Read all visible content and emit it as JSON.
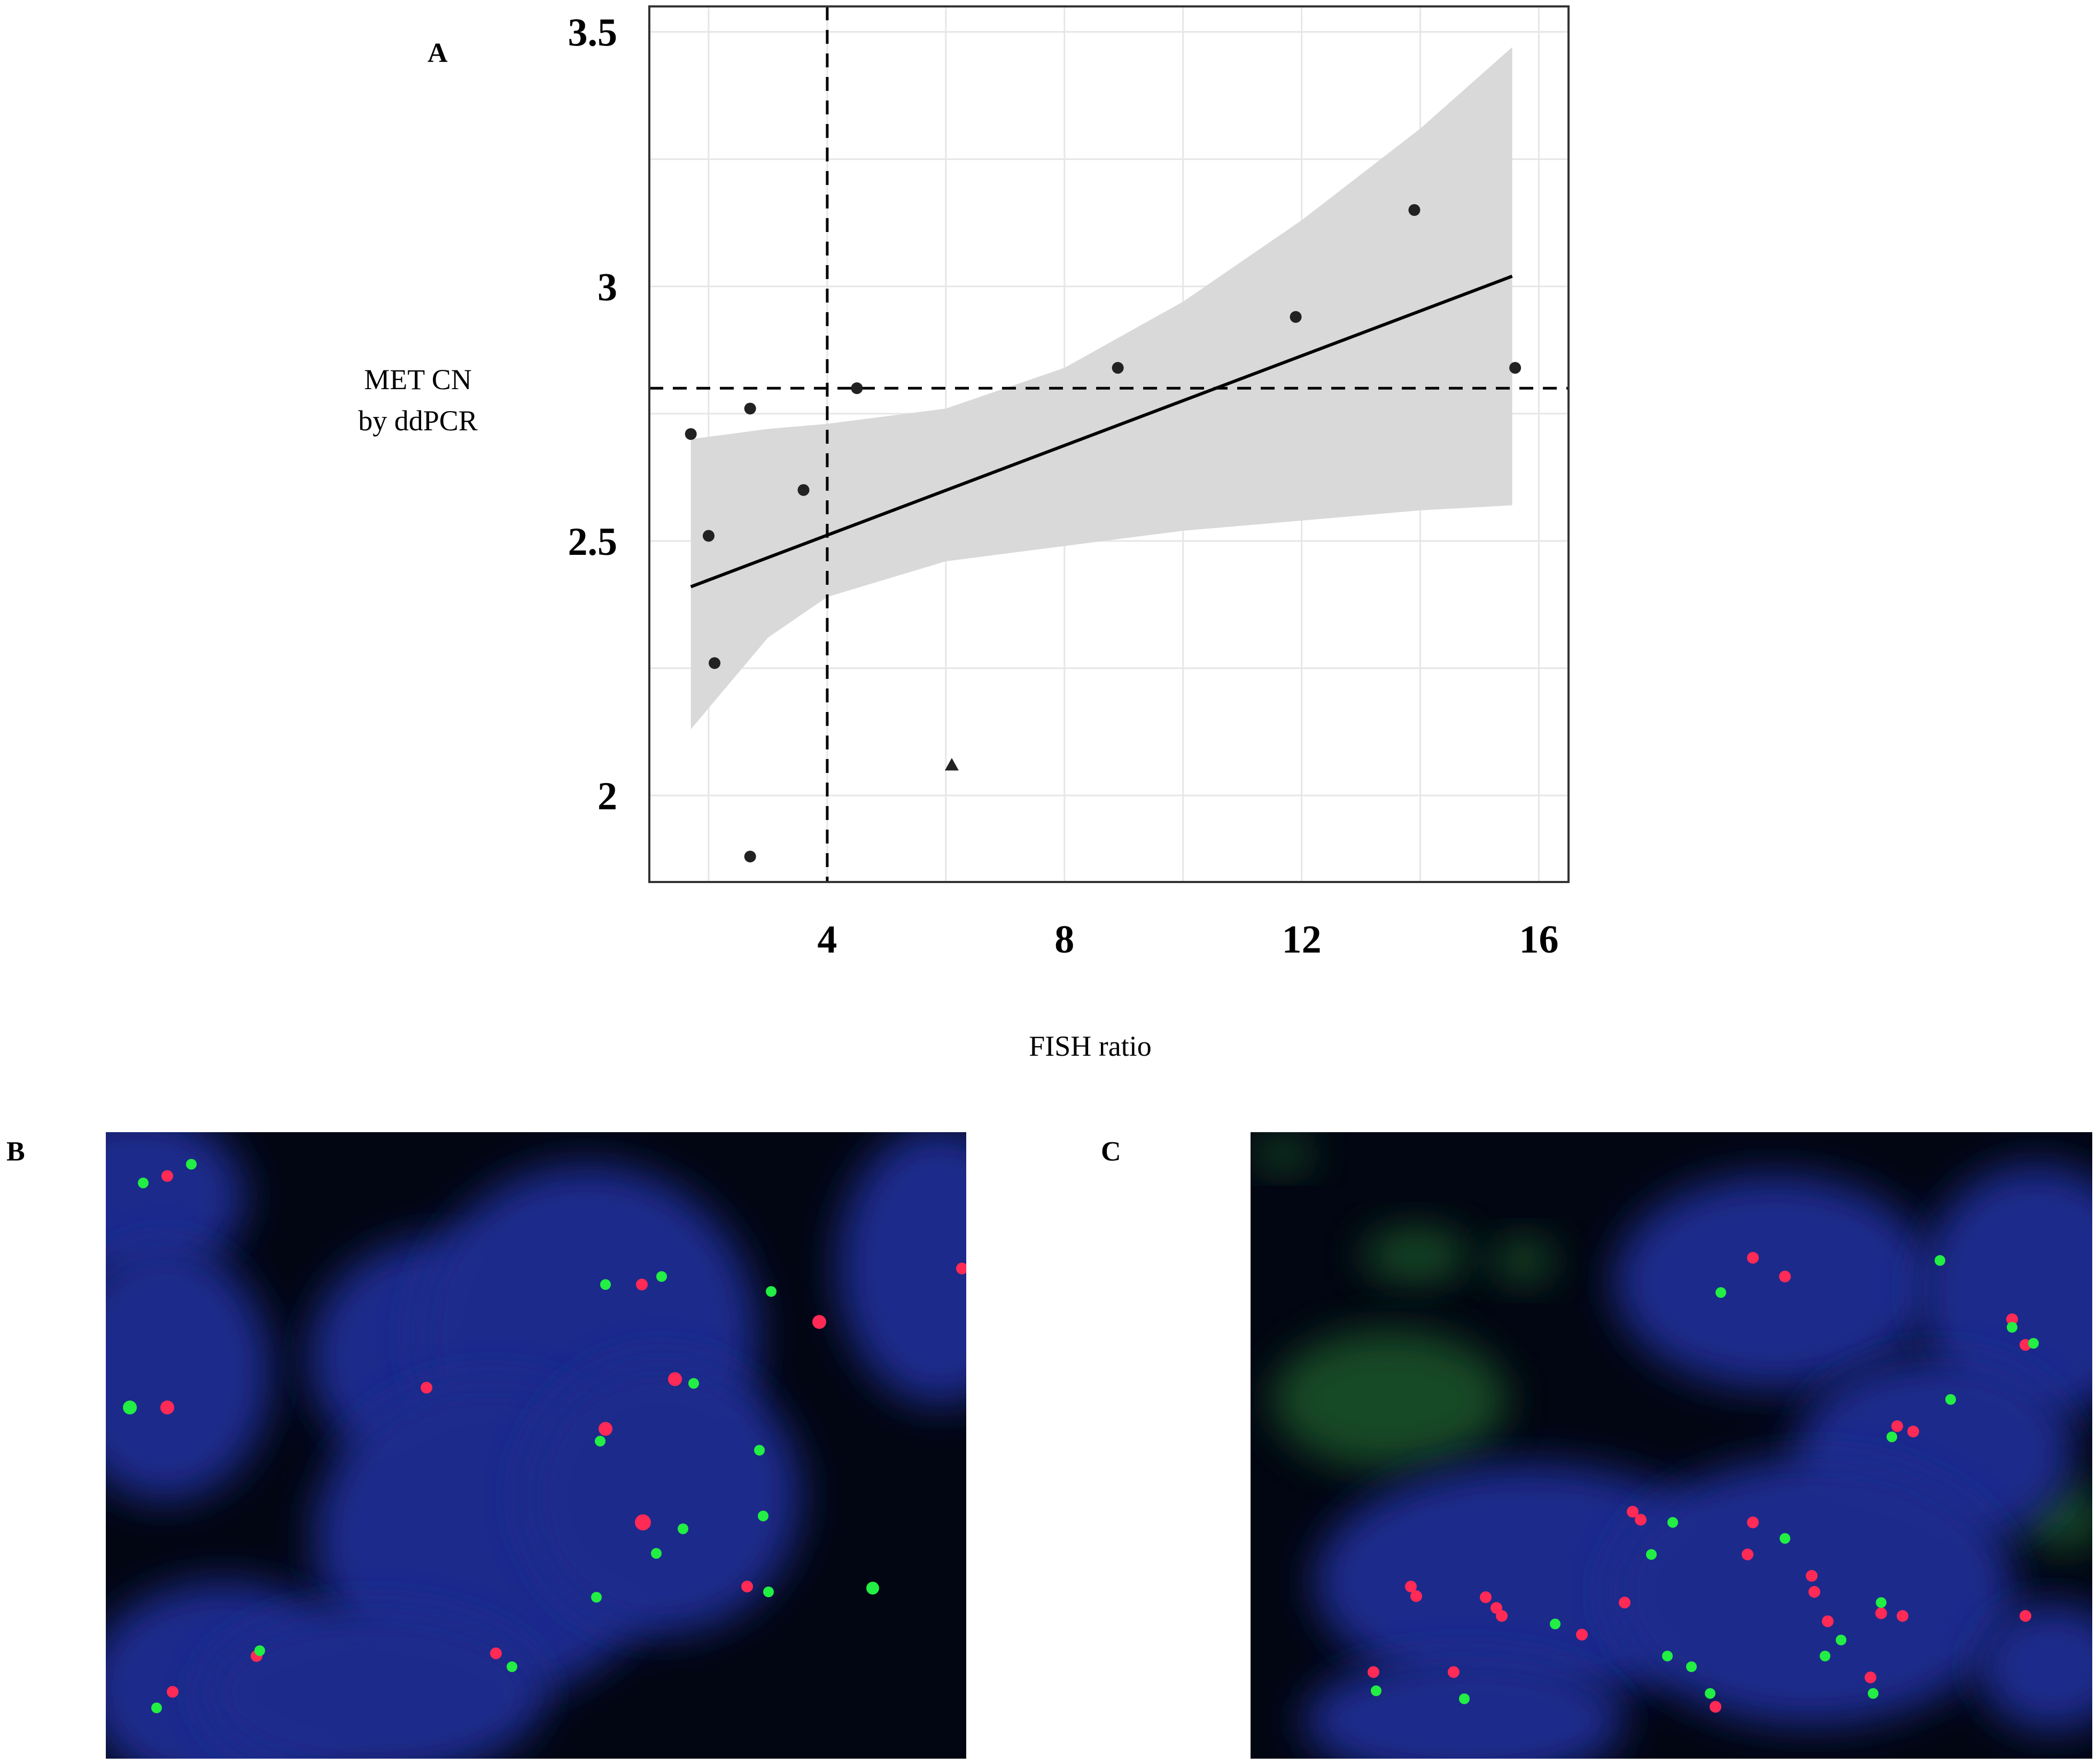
{
  "panels": {
    "a_label": "A",
    "b_label": "B",
    "c_label": "C"
  },
  "chart_data": {
    "type": "scatter",
    "title": "",
    "xlabel": "FISH ratio",
    "ylabel_lines": [
      "MET CN",
      "by ddPCR"
    ],
    "xlim": [
      1,
      16.5
    ],
    "ylim": [
      1.83,
      3.55
    ],
    "x_ticks": [
      4,
      8,
      12,
      16
    ],
    "x_tick_labels": [
      "4",
      "8",
      "12",
      "16"
    ],
    "y_ticks": [
      2,
      2.5,
      3,
      3.5
    ],
    "y_tick_labels": [
      "2",
      "2.5",
      "3",
      "3.5"
    ],
    "grid": true,
    "series": [
      {
        "marker": "circle",
        "points": [
          {
            "x": 1.7,
            "y": 2.71
          },
          {
            "x": 2.0,
            "y": 2.51
          },
          {
            "x": 2.1,
            "y": 2.26
          },
          {
            "x": 2.7,
            "y": 2.76
          },
          {
            "x": 2.7,
            "y": 1.88
          },
          {
            "x": 3.6,
            "y": 2.6
          },
          {
            "x": 4.5,
            "y": 2.8
          },
          {
            "x": 8.9,
            "y": 2.84
          },
          {
            "x": 11.9,
            "y": 2.94
          },
          {
            "x": 13.9,
            "y": 3.15
          },
          {
            "x": 15.6,
            "y": 2.84
          }
        ]
      },
      {
        "marker": "triangle",
        "points": [
          {
            "x": 6.1,
            "y": 2.06
          }
        ]
      }
    ],
    "fit_line": {
      "x": [
        1.7,
        15.55
      ],
      "y": [
        2.41,
        3.02
      ]
    },
    "confidence_band": {
      "x": [
        1.7,
        3.0,
        4.0,
        6.0,
        8.0,
        10.0,
        12.0,
        14.0,
        15.55
      ],
      "lower": [
        2.13,
        2.31,
        2.39,
        2.46,
        2.49,
        2.52,
        2.54,
        2.56,
        2.57
      ],
      "upper": [
        2.7,
        2.72,
        2.73,
        2.76,
        2.84,
        2.97,
        3.13,
        3.31,
        3.47
      ]
    },
    "reference_lines": {
      "vertical_x": 4,
      "horizontal_y": 2.8
    },
    "colors": {
      "band": "#d9d9d9",
      "line": "#000000",
      "grid": "#e6e6e6",
      "points": "#222222"
    }
  },
  "fish_images": {
    "nucleus_color": "#1f2a8c",
    "red_signal_color": "#ff2a55",
    "green_signal_color": "#22ee44"
  }
}
